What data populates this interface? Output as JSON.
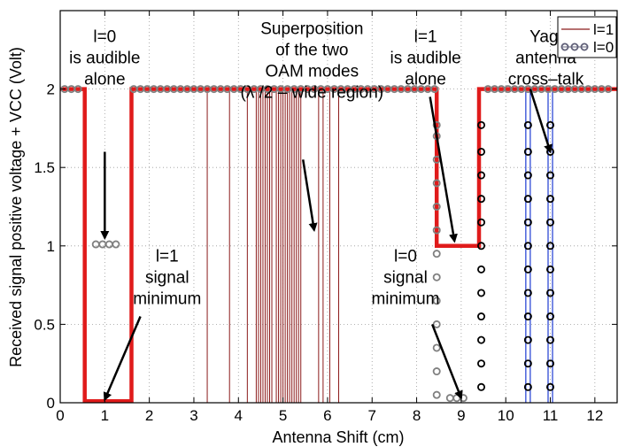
{
  "chart_data": {
    "type": "line",
    "title": "",
    "xlabel": "Antenna Shift (cm)",
    "ylabel": "Received signal positive voltage + VCC (Volt)",
    "xlim": [
      0,
      12.5
    ],
    "ylim": [
      0,
      2.5
    ],
    "xticks": [
      0,
      1,
      2,
      3,
      4,
      5,
      6,
      7,
      8,
      9,
      10,
      11,
      12
    ],
    "yticks": [
      0,
      0.5,
      1,
      1.5,
      2
    ],
    "ytick_labels": [
      "0",
      "0.5",
      "1",
      "1.5",
      "2"
    ],
    "grid": "dotted",
    "legend": {
      "placement": "top-right",
      "entries": [
        {
          "name": "l=1",
          "style": "line",
          "color": "#8b1a1a"
        },
        {
          "name": "l=0",
          "style": "circle-markers",
          "color": "#606078"
        }
      ]
    },
    "series": [
      {
        "name": "l=1",
        "color": "#e01b1b",
        "points": [
          [
            0,
            2
          ],
          [
            0.55,
            2
          ],
          [
            0.55,
            0.01
          ],
          [
            1.6,
            0.01
          ],
          [
            1.6,
            2
          ],
          [
            8.45,
            2
          ],
          [
            8.45,
            1
          ],
          [
            9.4,
            1
          ],
          [
            9.4,
            2
          ],
          [
            12.5,
            2
          ]
        ],
        "thin_color": "#8b1a1a",
        "spikes_x": [
          3.3,
          3.8,
          4.2,
          4.4,
          4.45,
          4.5,
          4.55,
          4.6,
          4.65,
          4.7,
          4.75,
          4.85,
          4.9,
          4.95,
          5.0,
          5.05,
          5.1,
          5.15,
          5.2,
          5.25,
          5.3,
          5.35,
          5.4,
          5.8,
          5.9,
          6.05,
          6.25
        ]
      },
      {
        "name": "l=0",
        "marker_color": "#808080",
        "top_circles_x": [
          0.1,
          0.25,
          0.4,
          1.65,
          1.8,
          1.95,
          2.1,
          2.25,
          2.4,
          2.55,
          2.7,
          2.85,
          3.0,
          3.15,
          3.3,
          3.45,
          3.6,
          3.75,
          3.9,
          4.05,
          4.2,
          4.35,
          4.5,
          4.65,
          4.8,
          4.95,
          5.1,
          5.25,
          5.4,
          5.55,
          5.7,
          5.85,
          6.0,
          6.15,
          6.3,
          6.45,
          6.6,
          6.75,
          6.9,
          7.05,
          7.2,
          7.35,
          7.5,
          7.65,
          7.8,
          7.95,
          8.1,
          8.25,
          8.4,
          9.6,
          9.75,
          9.9,
          10.05,
          10.2,
          10.35,
          10.5,
          10.65,
          10.8,
          10.95,
          11.1,
          11.25,
          11.4,
          11.55,
          11.7,
          11.85,
          12.0,
          12.15,
          12.3
        ],
        "top_circles_y": 2,
        "mid_circles_x": [
          0.8,
          0.95,
          1.1,
          1.25
        ],
        "mid_circles_y": 1.01,
        "columns": [
          {
            "x": 8.45,
            "y": [
              0.05,
              0.2,
              0.35,
              0.5,
              0.65,
              0.8,
              0.95,
              1.1,
              1.25,
              1.4,
              1.55,
              1.7,
              1.77
            ],
            "color": "#808080"
          },
          {
            "x": 9.45,
            "y": [
              0.1,
              0.25,
              0.4,
              0.55,
              0.7,
              0.85,
              1.0,
              1.15,
              1.3,
              1.45,
              1.6,
              1.77
            ],
            "color": "#000000"
          },
          {
            "x": 10.5,
            "y": [
              0.1,
              0.25,
              0.4,
              0.55,
              0.7,
              0.85,
              1.0,
              1.15,
              1.3,
              1.45,
              1.6,
              1.77
            ],
            "color": "#000000"
          },
          {
            "x": 11.0,
            "y": [
              0.1,
              0.25,
              0.4,
              0.55,
              0.7,
              0.85,
              1.0,
              1.15,
              1.3,
              1.45,
              1.6,
              1.77
            ],
            "color": "#000000"
          }
        ],
        "bottom_circles": [
          [
            8.75,
            0.03
          ],
          [
            8.9,
            0.03
          ],
          [
            9.05,
            0.03
          ]
        ],
        "vertical_lines_x": [
          10.45,
          10.55,
          10.95,
          11.05
        ],
        "vertical_line_color": "#1e3cd2"
      }
    ],
    "annotations": [
      {
        "lines": [
          "l=0",
          "is audible",
          "alone"
        ],
        "text_xy": [
          1.0,
          2.3
        ],
        "arrow_from": [
          1.0,
          1.6
        ],
        "arrow_to": [
          1.0,
          1.05
        ]
      },
      {
        "lines": [
          "Superposition",
          "of the two",
          "OAM modes",
          "(λ /2 – wide region)"
        ],
        "text_xy": [
          5.65,
          2.35
        ],
        "arrow_from": [
          5.45,
          1.55
        ],
        "arrow_to": [
          5.7,
          1.1
        ]
      },
      {
        "lines": [
          "l=1",
          "is audible",
          "alone"
        ],
        "text_xy": [
          8.2,
          2.3
        ],
        "arrow_from": [
          8.3,
          1.95
        ],
        "arrow_to": [
          8.85,
          1.03
        ]
      },
      {
        "lines": [
          "Yagi",
          "antenna",
          "cross–talk"
        ],
        "text_xy": [
          10.9,
          2.3
        ],
        "arrow_from": [
          10.55,
          2.0
        ],
        "arrow_to": [
          11.0,
          1.6
        ]
      },
      {
        "lines": [
          "l=1",
          "signal",
          "minimum"
        ],
        "text_xy": [
          2.4,
          0.9
        ],
        "arrow_from": [
          1.8,
          0.55
        ],
        "arrow_to": [
          1.0,
          0.02
        ]
      },
      {
        "lines": [
          "l=0",
          "signal",
          "minimum"
        ],
        "text_xy": [
          7.75,
          0.9
        ],
        "arrow_from": [
          8.35,
          0.5
        ],
        "arrow_to": [
          9.0,
          0.03
        ]
      }
    ]
  }
}
